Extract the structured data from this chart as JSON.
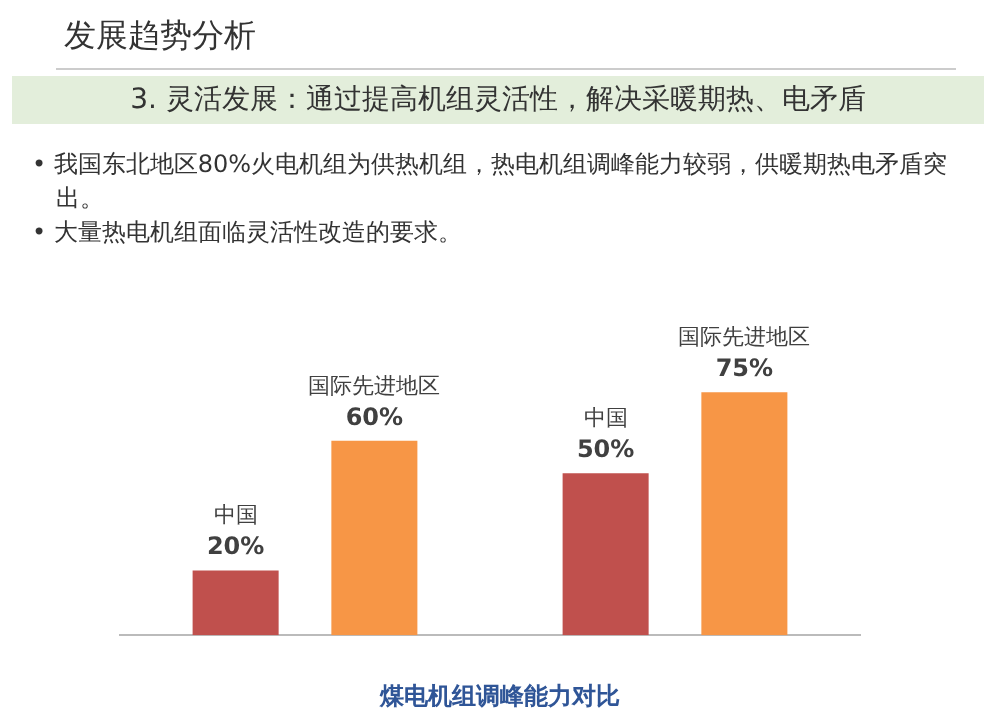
{
  "chart_data": {
    "type": "bar",
    "title": "煤电机组调峰能力对比",
    "subtitle": "3. 灵活发展：通过提高机组灵活性，解决采暖期热、电矛盾",
    "annotations": [
      "发展趋势分析",
      "• 我国东北地区80%火电机组为供热机组，热电机组调峰能力较弱，供暖期热电矛盾突出。",
      "• 大量热电机组面临灵活性改造的要求。"
    ],
    "categories": [
      null,
      null
    ],
    "series": [
      {
        "name": "中国",
        "color": "#c0504d",
        "values": [
          20,
          50
        ],
        "value_labels": [
          "20%",
          "50%"
        ]
      },
      {
        "name": "国际先进地区",
        "color": "#f79646",
        "values": [
          60,
          75
        ],
        "value_labels": [
          "60%",
          "75%"
        ]
      }
    ],
    "legend": false,
    "grid": false
  }
}
